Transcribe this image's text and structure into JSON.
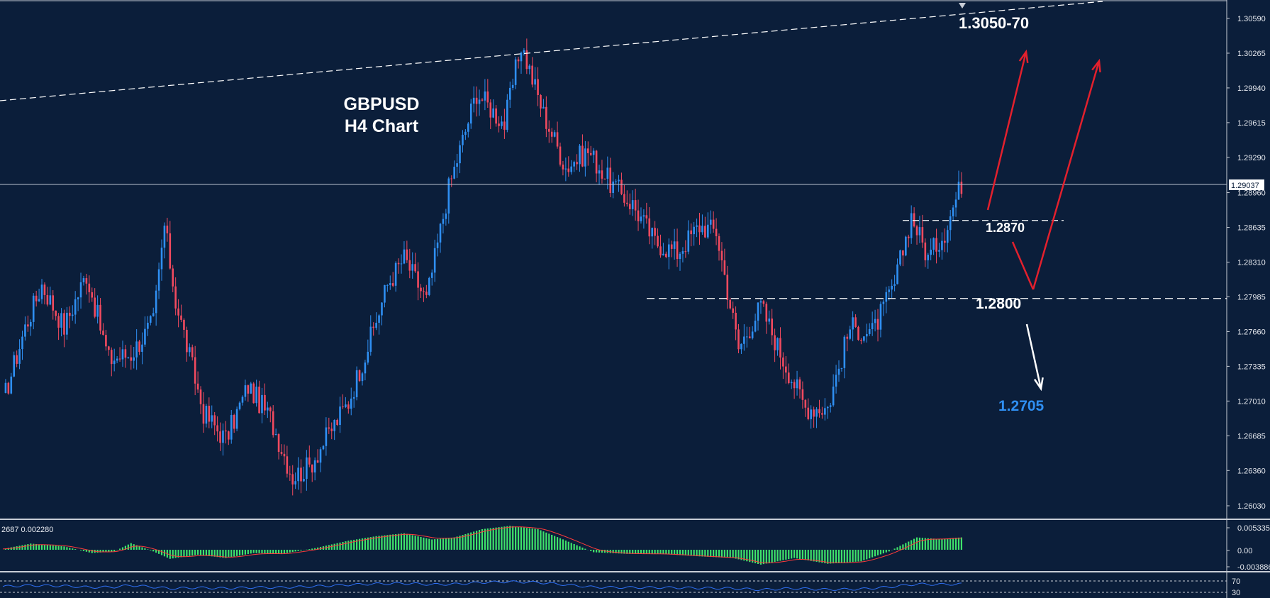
{
  "chart_data": {
    "type": "candlestick",
    "title": "GBPUSD",
    "subtitle": "H4 Chart",
    "symbol": "GBPUSD",
    "timeframe": "H4",
    "ylim": [
      1.259,
      1.307
    ],
    "y_ticks": [
      "1.30590",
      "1.30265",
      "1.29940",
      "1.29615",
      "1.29290",
      "1.28960",
      "1.28635",
      "1.28310",
      "1.27985",
      "1.27660",
      "1.27335",
      "1.27010",
      "1.26685",
      "1.26360",
      "1.26030"
    ],
    "current_price": "1.29037",
    "key_points": [
      [
        0,
        1.27
      ],
      [
        8,
        1.277
      ],
      [
        14,
        1.281
      ],
      [
        22,
        1.277
      ],
      [
        30,
        1.282
      ],
      [
        38,
        1.274
      ],
      [
        46,
        1.2745
      ],
      [
        54,
        1.2775
      ],
      [
        58,
        1.2865
      ],
      [
        62,
        1.2795
      ],
      [
        72,
        1.269
      ],
      [
        80,
        1.2665
      ],
      [
        88,
        1.2715
      ],
      [
        96,
        1.2685
      ],
      [
        104,
        1.263
      ],
      [
        110,
        1.264
      ],
      [
        118,
        1.2675
      ],
      [
        124,
        1.27
      ],
      [
        132,
        1.276
      ],
      [
        138,
        1.281
      ],
      [
        144,
        1.2835
      ],
      [
        152,
        1.2795
      ],
      [
        160,
        1.29
      ],
      [
        170,
        1.299
      ],
      [
        180,
        1.296
      ],
      [
        186,
        1.3035
      ],
      [
        194,
        1.297
      ],
      [
        202,
        1.292
      ],
      [
        210,
        1.2935
      ],
      [
        218,
        1.2905
      ],
      [
        226,
        1.2885
      ],
      [
        234,
        1.285
      ],
      [
        242,
        1.284
      ],
      [
        250,
        1.2865
      ],
      [
        256,
        1.286
      ],
      [
        264,
        1.275
      ],
      [
        272,
        1.279
      ],
      [
        280,
        1.274
      ],
      [
        288,
        1.2695
      ],
      [
        296,
        1.2695
      ],
      [
        304,
        1.277
      ],
      [
        312,
        1.2765
      ],
      [
        320,
        1.281
      ],
      [
        326,
        1.2875
      ],
      [
        332,
        1.2835
      ],
      [
        338,
        1.286
      ],
      [
        344,
        1.2905
      ]
    ],
    "levels": [
      {
        "label": "1.3050-70",
        "value": 1.3065
      },
      {
        "label": "1.2870",
        "value": 1.287
      },
      {
        "label": "1.2800",
        "value": 1.2797
      },
      {
        "label": "1.2705",
        "value": 1.2705
      }
    ],
    "colors": {
      "background": "#0b1e3a",
      "bull": "#2f8ff2",
      "bear": "#f24a5f",
      "annotation": "#ffffff",
      "arrow_up": "#e3202d",
      "target_blue": "#2f8ff2",
      "histogram": "#3fe36b",
      "signal": "#ff3b3b",
      "rsi_line": "#2f6ff2"
    },
    "macd": {
      "label": "2687 0.002280",
      "ticks": [
        "0.005335",
        "0.00",
        "-0.003886"
      ],
      "ylim": [
        -0.0045,
        0.0059
      ],
      "key_points": [
        [
          0,
          0.0002
        ],
        [
          10,
          0.0015
        ],
        [
          22,
          0.0008
        ],
        [
          32,
          -0.0008
        ],
        [
          40,
          -0.0004
        ],
        [
          46,
          0.0016
        ],
        [
          54,
          -0.0004
        ],
        [
          60,
          -0.0022
        ],
        [
          70,
          -0.0012
        ],
        [
          80,
          -0.002
        ],
        [
          90,
          -0.0008
        ],
        [
          100,
          -0.001
        ],
        [
          112,
          0.0004
        ],
        [
          124,
          0.0022
        ],
        [
          134,
          0.0033
        ],
        [
          144,
          0.004
        ],
        [
          154,
          0.0025
        ],
        [
          162,
          0.003
        ],
        [
          172,
          0.005
        ],
        [
          182,
          0.0058
        ],
        [
          192,
          0.005
        ],
        [
          200,
          0.0028
        ],
        [
          212,
          -0.0006
        ],
        [
          224,
          -0.001
        ],
        [
          236,
          -0.001
        ],
        [
          250,
          -0.0016
        ],
        [
          262,
          -0.002
        ],
        [
          272,
          -0.0036
        ],
        [
          284,
          -0.002
        ],
        [
          296,
          -0.0034
        ],
        [
          308,
          -0.0028
        ],
        [
          318,
          -0.0004
        ],
        [
          328,
          0.003
        ],
        [
          336,
          0.0026
        ],
        [
          344,
          0.003
        ]
      ]
    },
    "rsi": {
      "ticks": [
        "70",
        "30"
      ],
      "ylim": [
        0,
        100
      ]
    }
  }
}
